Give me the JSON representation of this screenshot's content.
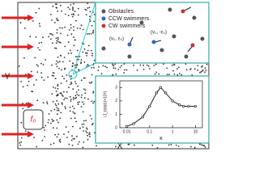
{
  "figure": {
    "y_axis_label": "Y",
    "x_axis_label": "X",
    "force_label": "f₀",
    "legend": [
      "Obstacles",
      "CCW swimmers",
      "CW swimmers"
    ],
    "ccw_label": "(v₀, ε₀)",
    "cw_label": "(v₀, -ε₀)"
  },
  "chart_data": {
    "type": "line",
    "xlabel": "κ",
    "ylabel": "⟨J_total⟩(×10³)",
    "x": [
      0.01,
      0.02,
      0.05,
      0.1,
      0.2,
      0.3,
      0.5,
      1,
      2,
      3,
      5,
      10
    ],
    "series": [
      {
        "color": "#222222",
        "values": [
          0.1,
          0.3,
          0.8,
          1.6,
          2.6,
          3.0,
          2.6,
          2.0,
          1.7,
          1.6,
          1.6,
          1.6
        ]
      }
    ],
    "xscale": "log",
    "xlim": [
      0.005,
      20
    ],
    "xticks": [
      0.01,
      0.1,
      1,
      10
    ],
    "ylim": [
      0,
      3.5
    ],
    "yticks": [
      0,
      1,
      2,
      3
    ]
  }
}
